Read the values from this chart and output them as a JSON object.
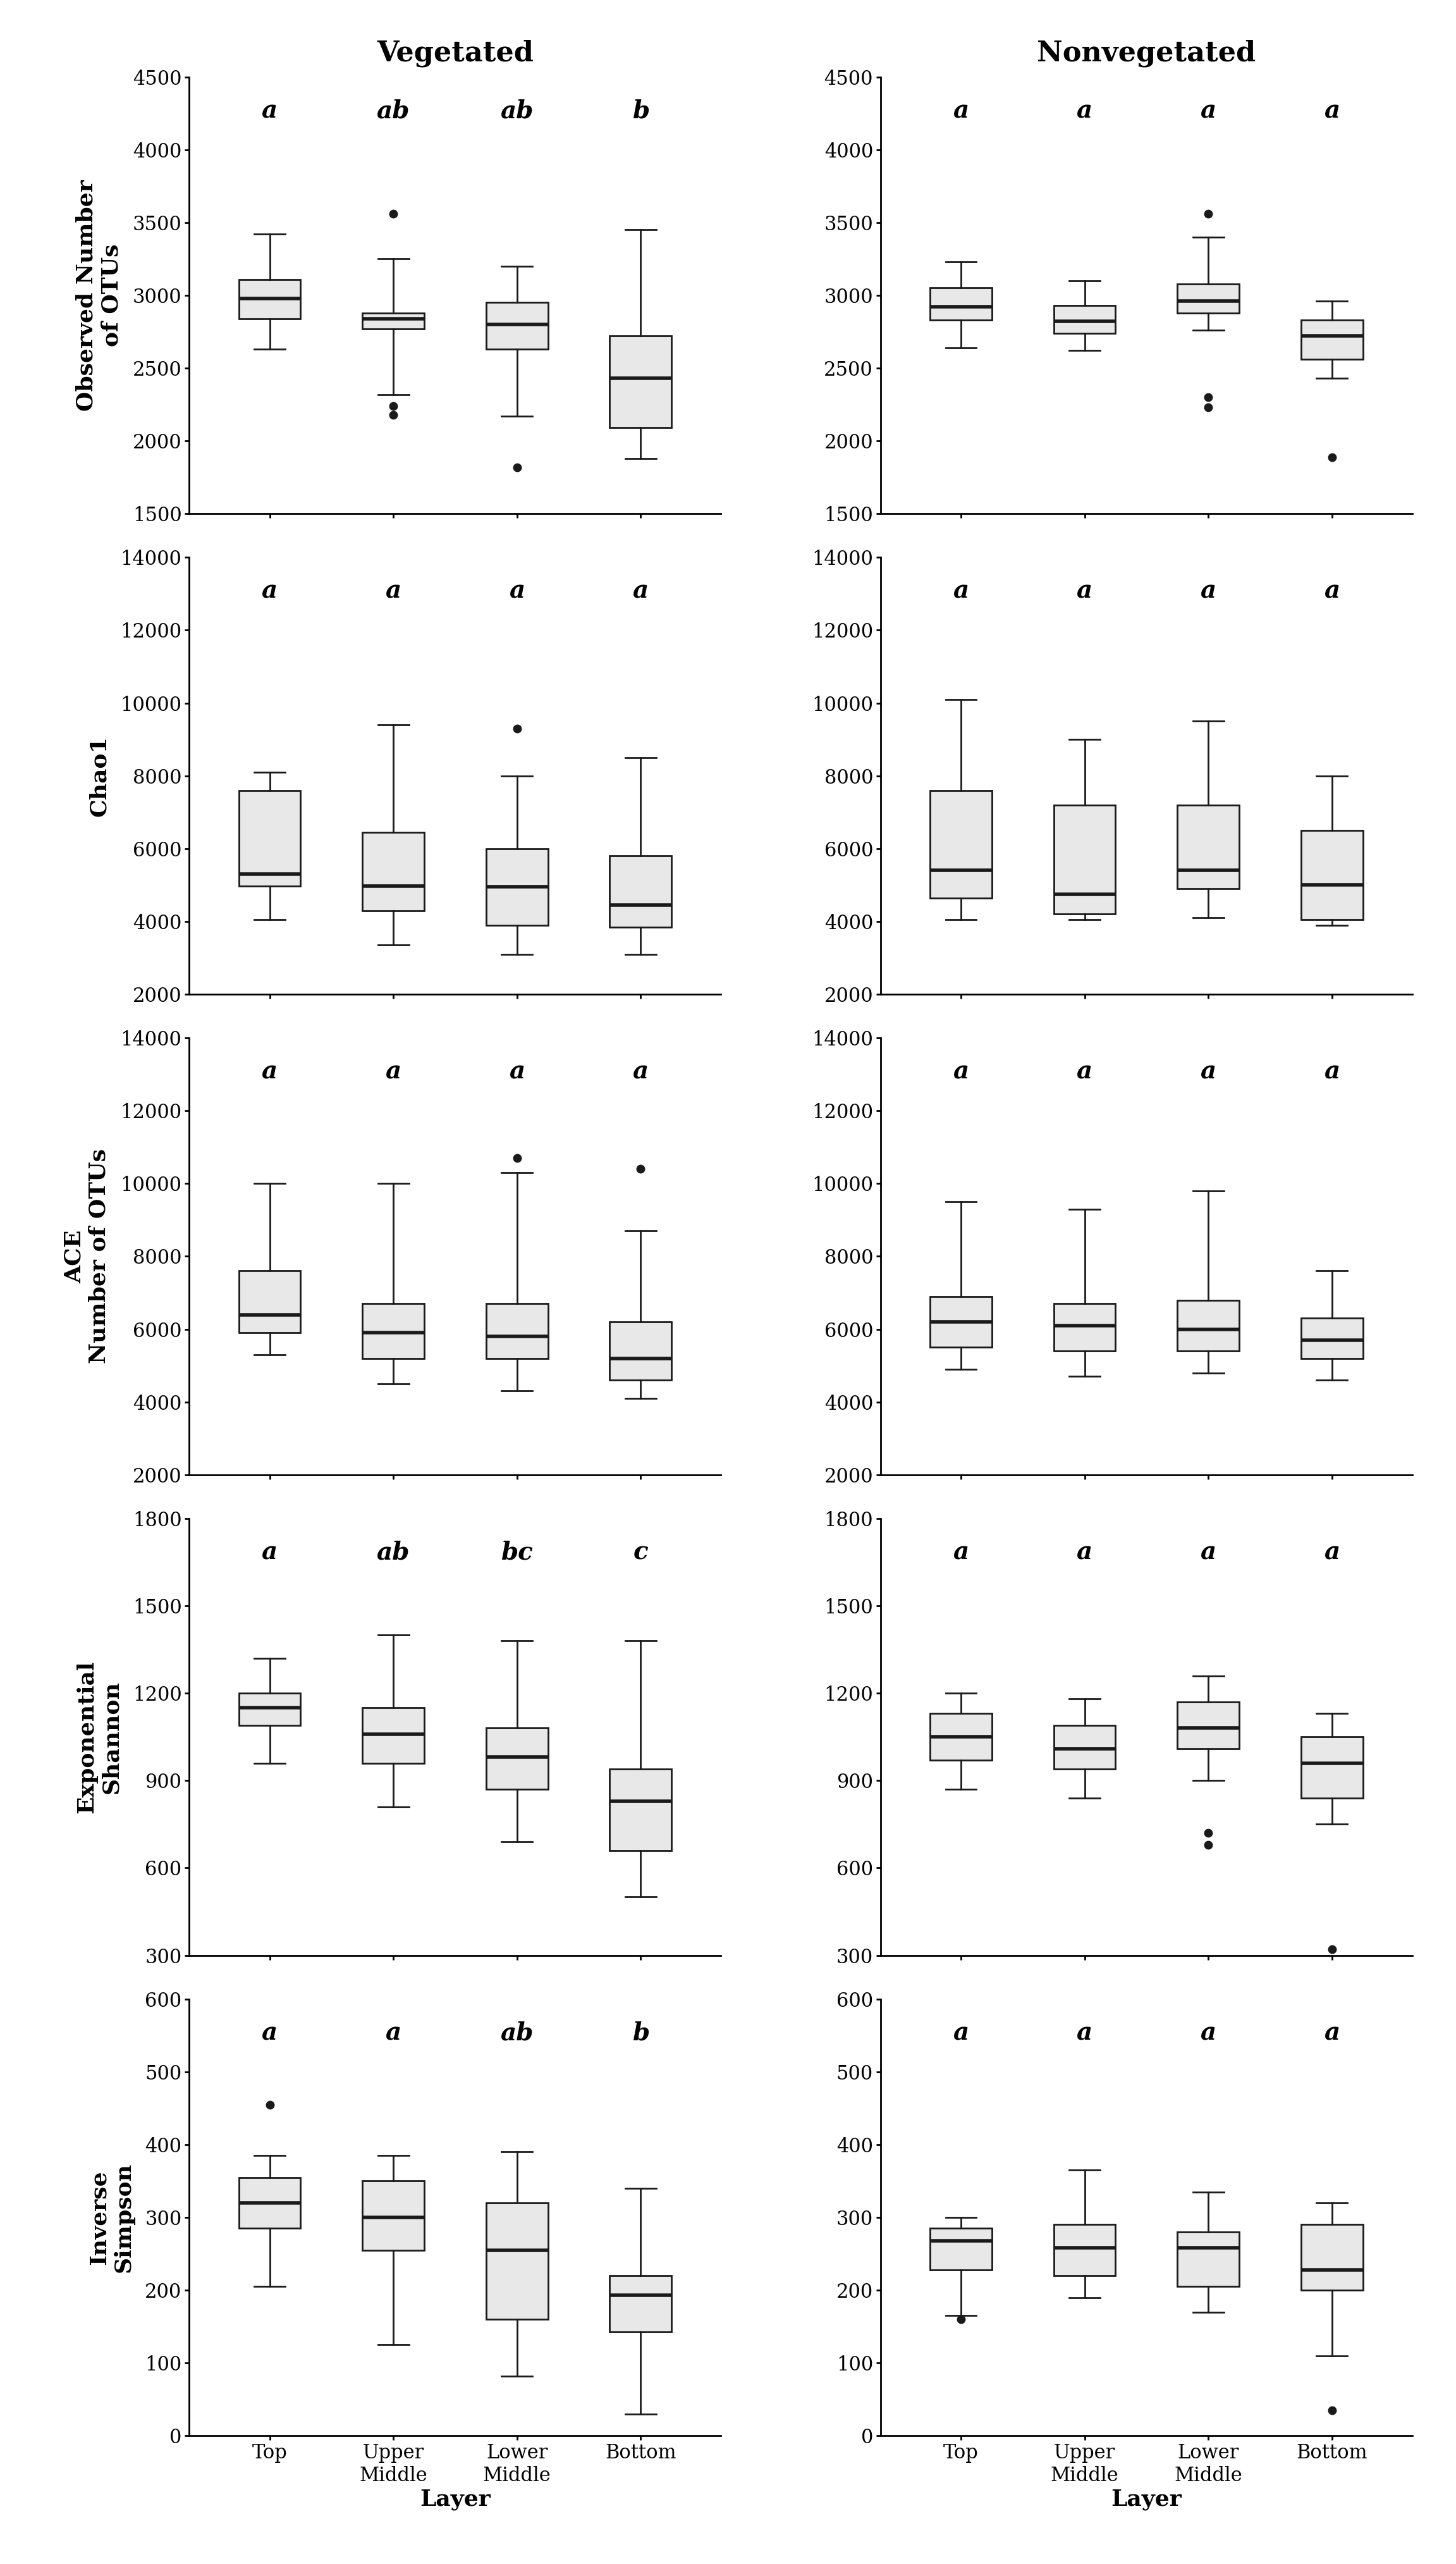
{
  "rows": [
    {
      "ylabel_line1": "Observed Number",
      "ylabel_line2": "of OTUs",
      "ylim": [
        1500,
        4500
      ],
      "yticks": [
        1500,
        2000,
        2500,
        3000,
        3500,
        4000,
        4500
      ],
      "veg_labels": [
        "a",
        "ab",
        "ab",
        "b"
      ],
      "nonveg_labels": [
        "a",
        "a",
        "a",
        "a"
      ],
      "veg_boxes": [
        {
          "med": 2980,
          "q1": 2840,
          "q3": 3110,
          "whislo": 2630,
          "whishi": 3420,
          "fliers": []
        },
        {
          "med": 2840,
          "q1": 2770,
          "q3": 2880,
          "whislo": 2320,
          "whishi": 3250,
          "fliers": [
            2240,
            2180,
            3560
          ]
        },
        {
          "med": 2800,
          "q1": 2630,
          "q3": 2950,
          "whislo": 2170,
          "whishi": 3200,
          "fliers": [
            1820
          ]
        },
        {
          "med": 2430,
          "q1": 2090,
          "q3": 2720,
          "whislo": 1880,
          "whishi": 3450,
          "fliers": []
        }
      ],
      "nonveg_boxes": [
        {
          "med": 2920,
          "q1": 2830,
          "q3": 3050,
          "whislo": 2640,
          "whishi": 3230,
          "fliers": []
        },
        {
          "med": 2820,
          "q1": 2740,
          "q3": 2930,
          "whislo": 2620,
          "whishi": 3100,
          "fliers": []
        },
        {
          "med": 2960,
          "q1": 2880,
          "q3": 3080,
          "whislo": 2760,
          "whishi": 3400,
          "fliers": [
            2300,
            2230,
            3560
          ]
        },
        {
          "med": 2720,
          "q1": 2560,
          "q3": 2830,
          "whislo": 2430,
          "whishi": 2960,
          "fliers": [
            1890
          ]
        }
      ]
    },
    {
      "ylabel_line1": "Chao1",
      "ylabel_line2": "",
      "ylim": [
        2000,
        14000
      ],
      "yticks": [
        2000,
        4000,
        6000,
        8000,
        10000,
        12000,
        14000
      ],
      "veg_labels": [
        "a",
        "a",
        "a",
        "a"
      ],
      "nonveg_labels": [
        "a",
        "a",
        "a",
        "a"
      ],
      "veg_boxes": [
        {
          "med": 5300,
          "q1": 4980,
          "q3": 7600,
          "whislo": 4050,
          "whishi": 8100,
          "fliers": []
        },
        {
          "med": 4980,
          "q1": 4300,
          "q3": 6450,
          "whislo": 3350,
          "whishi": 9400,
          "fliers": []
        },
        {
          "med": 4950,
          "q1": 3900,
          "q3": 6000,
          "whislo": 3100,
          "whishi": 8000,
          "fliers": [
            9300
          ]
        },
        {
          "med": 4450,
          "q1": 3850,
          "q3": 5800,
          "whislo": 3100,
          "whishi": 8500,
          "fliers": []
        }
      ],
      "nonveg_boxes": [
        {
          "med": 5400,
          "q1": 4650,
          "q3": 7600,
          "whislo": 4050,
          "whishi": 10100,
          "fliers": []
        },
        {
          "med": 4750,
          "q1": 4200,
          "q3": 7200,
          "whislo": 4050,
          "whishi": 9000,
          "fliers": []
        },
        {
          "med": 5400,
          "q1": 4900,
          "q3": 7200,
          "whislo": 4100,
          "whishi": 9500,
          "fliers": []
        },
        {
          "med": 5000,
          "q1": 4050,
          "q3": 6500,
          "whislo": 3900,
          "whishi": 8000,
          "fliers": []
        }
      ]
    },
    {
      "ylabel_line1": "ACE",
      "ylabel_line2": "Number of OTUs",
      "ylim": [
        2000,
        14000
      ],
      "yticks": [
        2000,
        4000,
        6000,
        8000,
        10000,
        12000,
        14000
      ],
      "veg_labels": [
        "a",
        "a",
        "a",
        "a"
      ],
      "nonveg_labels": [
        "a",
        "a",
        "a",
        "a"
      ],
      "veg_boxes": [
        {
          "med": 6400,
          "q1": 5900,
          "q3": 7600,
          "whislo": 5300,
          "whishi": 10000,
          "fliers": []
        },
        {
          "med": 5900,
          "q1": 5200,
          "q3": 6700,
          "whislo": 4500,
          "whishi": 10000,
          "fliers": []
        },
        {
          "med": 5800,
          "q1": 5200,
          "q3": 6700,
          "whislo": 4300,
          "whishi": 10300,
          "fliers": [
            10700
          ]
        },
        {
          "med": 5200,
          "q1": 4600,
          "q3": 6200,
          "whislo": 4100,
          "whishi": 8700,
          "fliers": [
            10400
          ]
        }
      ],
      "nonveg_boxes": [
        {
          "med": 6200,
          "q1": 5500,
          "q3": 6900,
          "whislo": 4900,
          "whishi": 9500,
          "fliers": []
        },
        {
          "med": 6100,
          "q1": 5400,
          "q3": 6700,
          "whislo": 4700,
          "whishi": 9300,
          "fliers": []
        },
        {
          "med": 6000,
          "q1": 5400,
          "q3": 6800,
          "whislo": 4800,
          "whishi": 9800,
          "fliers": []
        },
        {
          "med": 5700,
          "q1": 5200,
          "q3": 6300,
          "whislo": 4600,
          "whishi": 7600,
          "fliers": []
        }
      ]
    },
    {
      "ylabel_line1": "Exponential",
      "ylabel_line2": "Shannon",
      "ylim": [
        300,
        1800
      ],
      "yticks": [
        300,
        600,
        900,
        1200,
        1500,
        1800
      ],
      "veg_labels": [
        "a",
        "ab",
        "bc",
        "c"
      ],
      "nonveg_labels": [
        "a",
        "a",
        "a",
        "a"
      ],
      "veg_boxes": [
        {
          "med": 1150,
          "q1": 1090,
          "q3": 1200,
          "whislo": 960,
          "whishi": 1320,
          "fliers": []
        },
        {
          "med": 1060,
          "q1": 960,
          "q3": 1150,
          "whislo": 810,
          "whishi": 1400,
          "fliers": []
        },
        {
          "med": 980,
          "q1": 870,
          "q3": 1080,
          "whislo": 690,
          "whishi": 1380,
          "fliers": []
        },
        {
          "med": 830,
          "q1": 660,
          "q3": 940,
          "whislo": 500,
          "whishi": 1380,
          "fliers": []
        }
      ],
      "nonveg_boxes": [
        {
          "med": 1050,
          "q1": 970,
          "q3": 1130,
          "whislo": 870,
          "whishi": 1200,
          "fliers": []
        },
        {
          "med": 1010,
          "q1": 940,
          "q3": 1090,
          "whislo": 840,
          "whishi": 1180,
          "fliers": []
        },
        {
          "med": 1080,
          "q1": 1010,
          "q3": 1170,
          "whislo": 900,
          "whishi": 1260,
          "fliers": [
            720,
            680
          ]
        },
        {
          "med": 960,
          "q1": 840,
          "q3": 1050,
          "whislo": 750,
          "whishi": 1130,
          "fliers": [
            320
          ]
        }
      ]
    },
    {
      "ylabel_line1": "Inverse",
      "ylabel_line2": "Simpson",
      "ylim": [
        0,
        600
      ],
      "yticks": [
        0,
        100,
        200,
        300,
        400,
        500,
        600
      ],
      "veg_labels": [
        "a",
        "a",
        "ab",
        "b"
      ],
      "nonveg_labels": [
        "a",
        "a",
        "a",
        "a"
      ],
      "veg_boxes": [
        {
          "med": 320,
          "q1": 285,
          "q3": 355,
          "whislo": 205,
          "whishi": 385,
          "fliers": [
            455
          ]
        },
        {
          "med": 300,
          "q1": 255,
          "q3": 350,
          "whislo": 125,
          "whishi": 385,
          "fliers": []
        },
        {
          "med": 255,
          "q1": 160,
          "q3": 320,
          "whislo": 82,
          "whishi": 390,
          "fliers": []
        },
        {
          "med": 193,
          "q1": 143,
          "q3": 220,
          "whislo": 30,
          "whishi": 340,
          "fliers": []
        }
      ],
      "nonveg_boxes": [
        {
          "med": 268,
          "q1": 228,
          "q3": 285,
          "whislo": 165,
          "whishi": 300,
          "fliers": [
            160
          ]
        },
        {
          "med": 258,
          "q1": 220,
          "q3": 290,
          "whislo": 190,
          "whishi": 365,
          "fliers": []
        },
        {
          "med": 258,
          "q1": 205,
          "q3": 280,
          "whislo": 170,
          "whishi": 335,
          "fliers": []
        },
        {
          "med": 228,
          "q1": 200,
          "q3": 290,
          "whislo": 110,
          "whishi": 320,
          "fliers": [
            35
          ]
        }
      ]
    }
  ],
  "categories": [
    "Top",
    "Upper\nMiddle",
    "Lower\nMiddle",
    "Bottom"
  ],
  "col_titles": [
    "Vegetated",
    "Nonvegetated"
  ],
  "xlabel": "Layer",
  "box_facecolor": "#e8e8e8",
  "box_edgecolor": "#1a1a1a",
  "median_color": "#1a1a1a",
  "flier_color": "#1a1a1a",
  "whisker_color": "#1a1a1a",
  "cap_color": "#1a1a1a",
  "title_fontsize": 32,
  "label_fontsize": 26,
  "tick_fontsize": 22,
  "sig_fontsize": 28,
  "ylabel_fontsize": 26,
  "lw": 2.0
}
